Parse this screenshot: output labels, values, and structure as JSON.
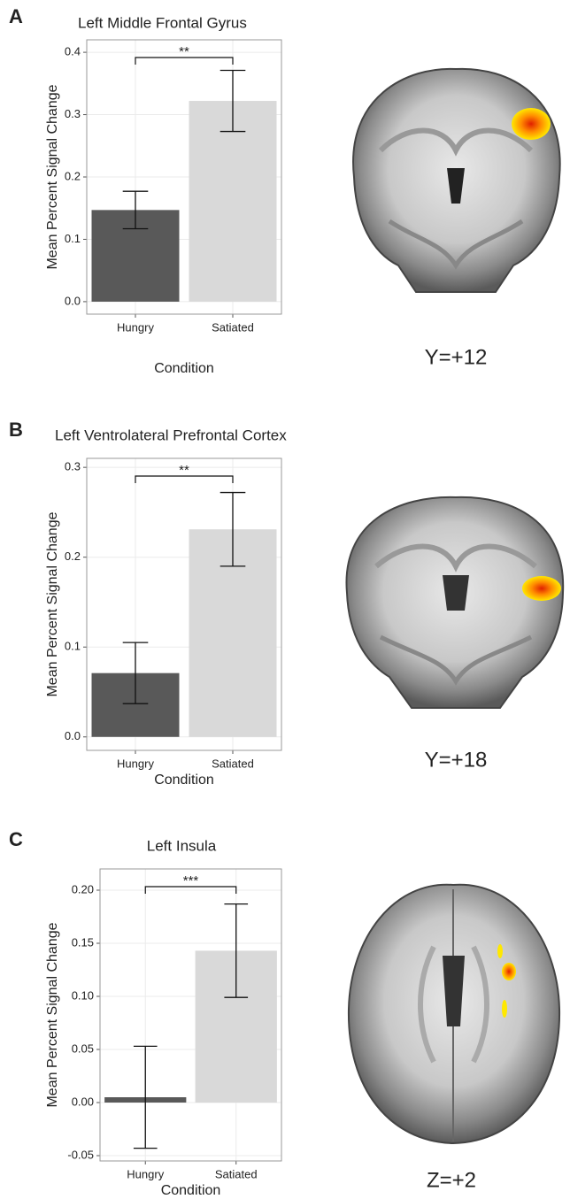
{
  "chart_data": [
    {
      "type": "bar",
      "panel": "A",
      "title": "Left Middle Frontal Gyrus",
      "categories": [
        "Hungry",
        "Satiated"
      ],
      "values": [
        0.147,
        0.322
      ],
      "errors": [
        0.03,
        0.049
      ],
      "colors": [
        "#595959",
        "#d9d9d9"
      ],
      "annotation": "**",
      "x_label": "Condition",
      "y_label": "Mean Percent Signal Change",
      "ylim": [
        -0.02,
        0.42
      ],
      "yticks": [
        {
          "value": 0,
          "label": "0.0"
        },
        0.1,
        0.2,
        0.3,
        0.4
      ],
      "grid": true
    },
    {
      "type": "bar",
      "panel": "B",
      "title": "Left Ventrolateral Prefrontal Cortex",
      "categories": [
        "Hungry",
        "Satiated"
      ],
      "values": [
        0.071,
        0.231
      ],
      "errors": [
        0.034,
        0.041
      ],
      "colors": [
        "#595959",
        "#d9d9d9"
      ],
      "annotation": "**",
      "x_label": "Condition",
      "y_label": "Mean Percent Signal Change",
      "ylim": [
        -0.015,
        0.31
      ],
      "yticks": [
        {
          "value": 0,
          "label": "0.0"
        },
        0.1,
        0.2,
        0.3
      ],
      "grid": true
    },
    {
      "type": "bar",
      "panel": "C",
      "title": "Left Insula",
      "categories": [
        "Hungry",
        "Satiated"
      ],
      "values": [
        0.005,
        0.143
      ],
      "errors": [
        0.048,
        0.044
      ],
      "colors": [
        "#595959",
        "#d9d9d9"
      ],
      "annotation": "***",
      "x_label": "Condition",
      "y_label": "Mean Percent Signal Change",
      "ylim": [
        -0.055,
        0.22
      ],
      "yticks": [
        -0.05,
        {
          "value": 0,
          "label": "0.00"
        },
        0.05,
        {
          "value": 0.1,
          "label": "0.10"
        },
        0.15,
        {
          "value": 0.2,
          "label": "0.20"
        }
      ],
      "grid": true
    }
  ],
  "brain_images": [
    {
      "label": "Y=+12"
    },
    {
      "label": "Y=+18"
    },
    {
      "label": "Z=+2"
    }
  ]
}
